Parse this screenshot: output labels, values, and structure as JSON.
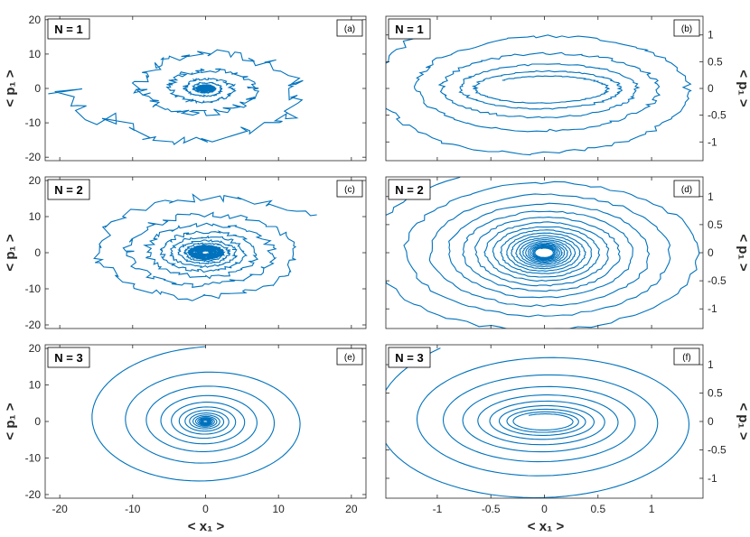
{
  "figure": {
    "xlabel": "< x₁ >",
    "ylabel": "< p₁ >",
    "curve_color": "#0072BD"
  },
  "chart_data": [
    {
      "type": "line",
      "id": "a",
      "n_label": "N = 1",
      "panel_label": "(a)",
      "xlim": [
        -22,
        22
      ],
      "ylim": [
        -21,
        21
      ],
      "xticks": [
        -20,
        -10,
        0,
        10,
        20
      ],
      "yticks": [
        -20,
        -10,
        0,
        10,
        20
      ],
      "ytick_labels": [
        "-20",
        "-10",
        "0",
        "10",
        "20"
      ],
      "xtick_labels": [],
      "series": [
        {
          "kind": "spiral",
          "a_start": 19.2,
          "b_start": 18.6,
          "a_end": 0.6,
          "b_end": 0.5,
          "turns": 6,
          "theta0": 3.1,
          "core_turns": 10,
          "core_a": 1.1,
          "core_b": 0.9,
          "jitter": 0.25
        }
      ]
    },
    {
      "type": "line",
      "id": "b",
      "n_label": "N = 1",
      "panel_label": "(b)",
      "xlim": [
        -1.48,
        1.48
      ],
      "ylim": [
        -1.35,
        1.35
      ],
      "xticks": [
        -1,
        -0.5,
        0,
        0.5,
        1
      ],
      "yticks": [
        -1,
        -0.5,
        0,
        0.5,
        1
      ],
      "ytick_labels": [
        "-1",
        "-0.5",
        "0",
        "0.5",
        "1"
      ],
      "xtick_labels": [],
      "series": [
        {
          "kind": "spiral",
          "a_start": 1.6,
          "b_start": 1.5,
          "a_end": 0.55,
          "b_end": 0.22,
          "turns": 5,
          "theta0": 2.4,
          "core_turns": 0,
          "jitter": 0.06
        }
      ]
    },
    {
      "type": "line",
      "id": "c",
      "n_label": "N = 2",
      "panel_label": "(c)",
      "xlim": [
        -22,
        22
      ],
      "ylim": [
        -21,
        21
      ],
      "xticks": [
        -20,
        -10,
        0,
        10,
        20
      ],
      "yticks": [
        -20,
        -10,
        0,
        10,
        20
      ],
      "ytick_labels": [
        "-20",
        "-10",
        "0",
        "10",
        "20"
      ],
      "xtick_labels": [],
      "series": [
        {
          "kind": "spiral",
          "a_start": 17.5,
          "b_start": 16.5,
          "a_end": 0.5,
          "b_end": 0.4,
          "turns": 14,
          "theta0": 0.6,
          "core_turns": 8,
          "core_a": 2.2,
          "core_b": 1.8,
          "jitter": 0.15
        }
      ]
    },
    {
      "type": "line",
      "id": "d",
      "n_label": "N = 2",
      "panel_label": "(d)",
      "xlim": [
        -1.48,
        1.48
      ],
      "ylim": [
        -1.35,
        1.35
      ],
      "xticks": [
        -1,
        -0.5,
        0,
        0.5,
        1
      ],
      "yticks": [
        -1,
        -0.5,
        0,
        0.5,
        1
      ],
      "ytick_labels": [
        "-1",
        "-0.5",
        "0",
        "0.5",
        "1"
      ],
      "xtick_labels": [],
      "series": [
        {
          "kind": "spiral",
          "a_start": 1.7,
          "b_start": 1.55,
          "a_end": 0.08,
          "b_end": 0.08,
          "turns": 20,
          "theta0": 2.0,
          "core_turns": 0,
          "jitter": 0.04
        }
      ]
    },
    {
      "type": "line",
      "id": "e",
      "n_label": "N = 3",
      "panel_label": "(e)",
      "xlim": [
        -22,
        22
      ],
      "ylim": [
        -21,
        21
      ],
      "xticks": [
        -20,
        -10,
        0,
        10,
        20
      ],
      "yticks": [
        -20,
        -10,
        0,
        10,
        20
      ],
      "ytick_labels": [
        "-20",
        "-10",
        "0",
        "10",
        "20"
      ],
      "xtick_labels": [
        "-20",
        "-10",
        "0",
        "10",
        "20"
      ],
      "series": [
        {
          "kind": "spiral",
          "a_start": 17.5,
          "b_start": 20.5,
          "a_end": 0.3,
          "b_end": 0.25,
          "turns": 16,
          "theta0": 1.57,
          "core_turns": 0,
          "jitter": 0.0
        }
      ]
    },
    {
      "type": "line",
      "id": "f",
      "n_label": "N = 3",
      "panel_label": "(f)",
      "xlim": [
        -1.48,
        1.48
      ],
      "ylim": [
        -1.35,
        1.35
      ],
      "xticks": [
        -1,
        -0.5,
        0,
        0.5,
        1
      ],
      "yticks": [
        -1,
        -0.5,
        0,
        0.5,
        1
      ],
      "ytick_labels": [
        "-1",
        "-0.5",
        "0",
        "0.5",
        "1"
      ],
      "xtick_labels": [
        "-1",
        "-0.5",
        "0",
        "0.5",
        "1"
      ],
      "series": [
        {
          "kind": "spiral",
          "a_start": 1.65,
          "b_start": 1.6,
          "a_end": 0.25,
          "b_end": 0.13,
          "turns": 9,
          "theta0": 2.2,
          "core_turns": 0,
          "jitter": 0.0
        }
      ]
    }
  ]
}
